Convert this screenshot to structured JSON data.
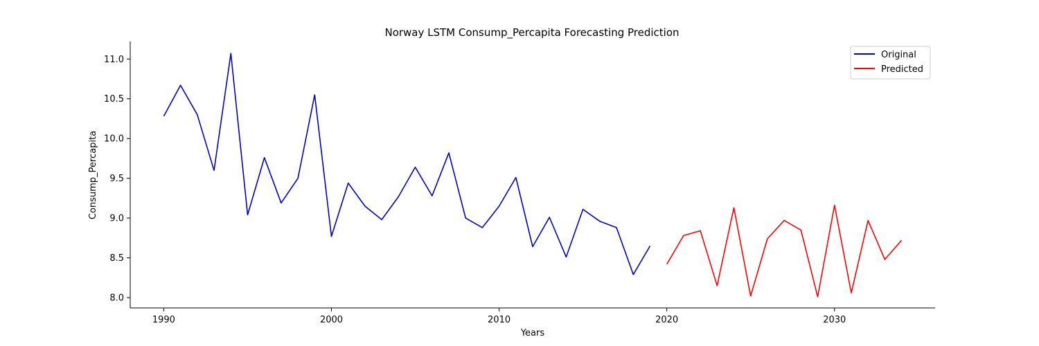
{
  "chart_data": {
    "type": "line",
    "title": "Norway LSTM Consump_Percapita Forecasting Prediction",
    "xlabel": "Years",
    "ylabel": "Consump_Percapita",
    "xlim": [
      1988,
      2036
    ],
    "ylim": [
      7.87,
      11.22
    ],
    "xticks": [
      1990,
      2000,
      2010,
      2020,
      2030
    ],
    "yticks": [
      8.0,
      8.5,
      9.0,
      9.5,
      10.0,
      10.5,
      11.0
    ],
    "ytick_labels": [
      "8.0",
      "8.5",
      "9.0",
      "9.5",
      "10.0",
      "10.5",
      "11.0"
    ],
    "grid": false,
    "legend_position": "top-right",
    "series": [
      {
        "name": "Original",
        "color": "#0000cc",
        "x": [
          1990,
          1991,
          1992,
          1993,
          1994,
          1995,
          1996,
          1997,
          1998,
          1999,
          2000,
          2001,
          2002,
          2003,
          2004,
          2005,
          2006,
          2007,
          2008,
          2009,
          2010,
          2011,
          2012,
          2013,
          2014,
          2015,
          2016,
          2017,
          2018,
          2019
        ],
        "values": [
          10.28,
          10.67,
          10.3,
          9.6,
          11.07,
          9.04,
          9.76,
          9.19,
          9.5,
          10.55,
          8.77,
          9.44,
          9.15,
          8.98,
          9.27,
          9.64,
          9.28,
          9.82,
          9.0,
          8.88,
          9.15,
          9.51,
          8.64,
          9.01,
          8.51,
          9.11,
          8.96,
          8.88,
          8.29,
          8.65
        ]
      },
      {
        "name": "Predicted",
        "color": "#ff0000",
        "x": [
          2020,
          2021,
          2022,
          2023,
          2024,
          2025,
          2026,
          2027,
          2028,
          2029,
          2030,
          2031,
          2032,
          2033,
          2034
        ],
        "values": [
          8.42,
          8.78,
          8.84,
          8.15,
          9.13,
          8.02,
          8.74,
          8.97,
          8.85,
          8.01,
          9.16,
          8.06,
          8.97,
          8.48,
          8.72
        ]
      }
    ]
  }
}
